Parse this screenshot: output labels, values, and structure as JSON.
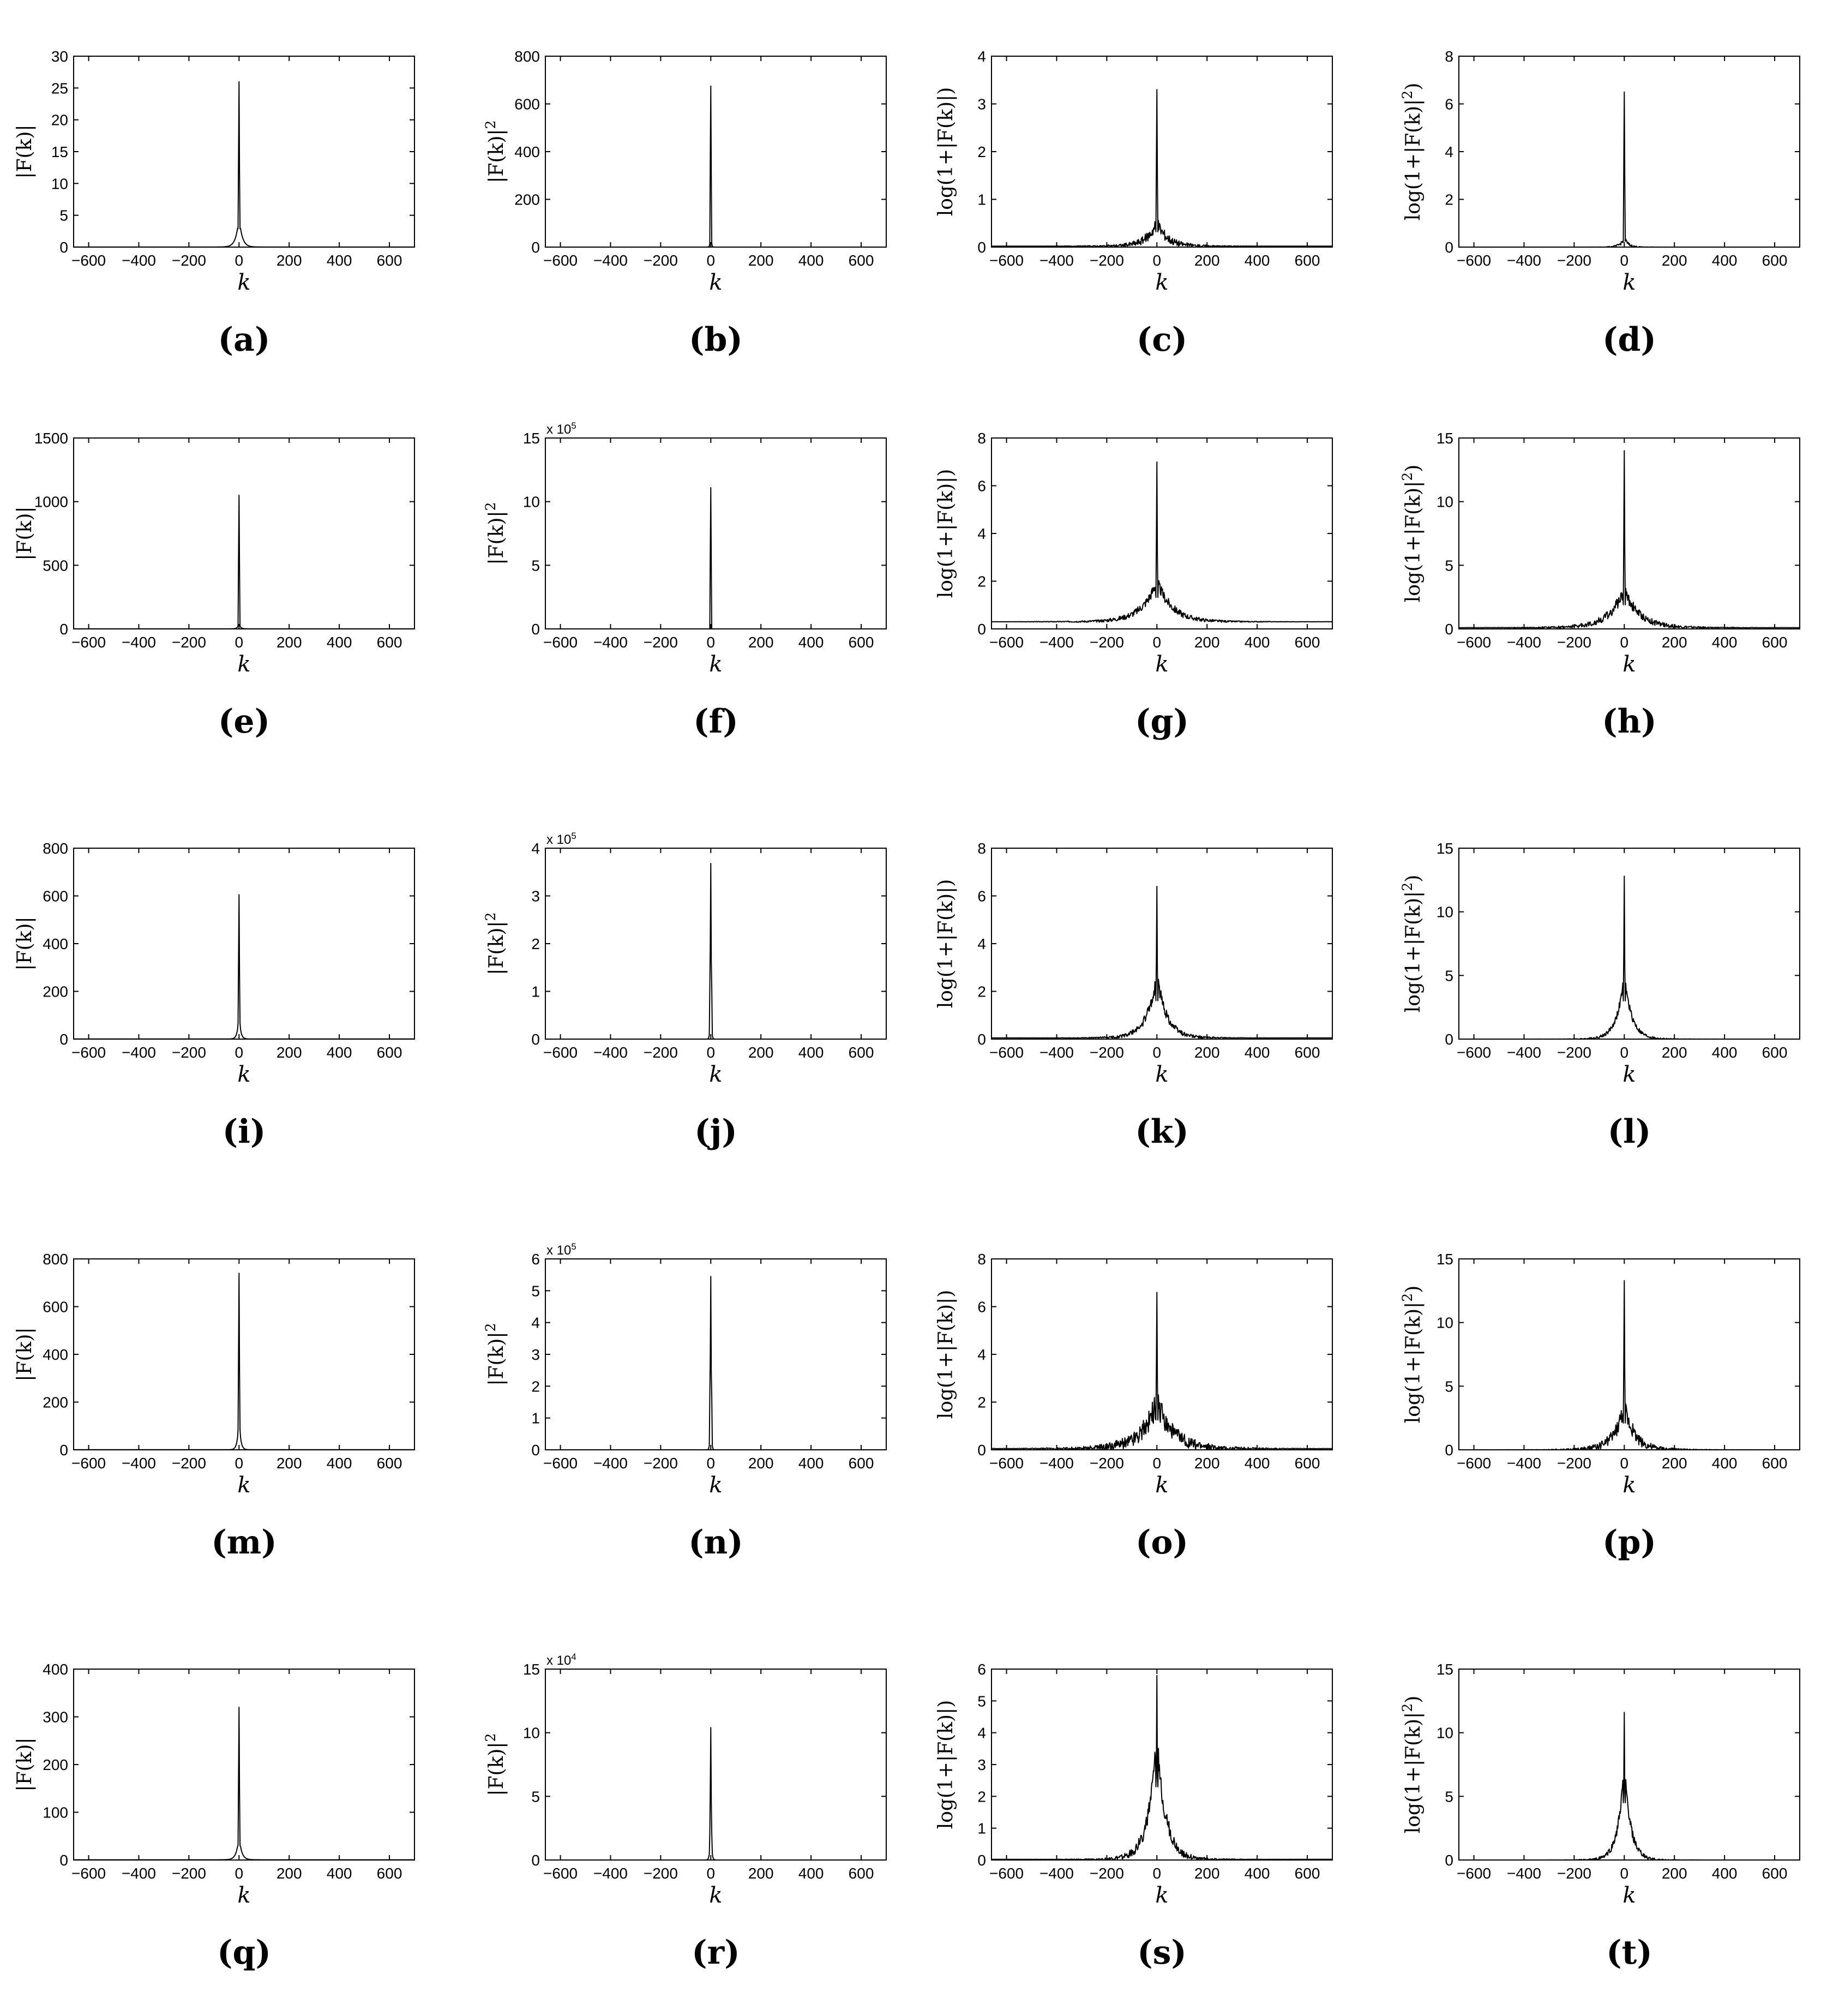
{
  "chart_data": [
    {
      "panel": "(a)",
      "type": "line",
      "xlabel": "k",
      "ylabel": "|F(k)|",
      "multiplier": "",
      "xlim": [
        -660,
        700
      ],
      "xticks": [
        -600,
        -400,
        -200,
        0,
        200,
        400,
        600
      ],
      "ylim": [
        0,
        30
      ],
      "yticks": [
        0,
        5,
        10,
        15,
        20,
        25,
        30
      ],
      "peak": 26,
      "shoulder": 4.8,
      "tail": 0.01,
      "width": 12,
      "noise": 0
    },
    {
      "panel": "(b)",
      "type": "line",
      "xlabel": "k",
      "ylabel": "|F(k)|^2",
      "multiplier": "",
      "xlim": [
        -660,
        700
      ],
      "xticks": [
        -600,
        -400,
        -200,
        0,
        200,
        400,
        600
      ],
      "ylim": [
        0,
        800
      ],
      "yticks": [
        0,
        200,
        400,
        600,
        800
      ],
      "peak": 675,
      "shoulder": 25,
      "tail": 0.01,
      "width": 3,
      "noise": 0
    },
    {
      "panel": "(c)",
      "type": "line",
      "xlabel": "k",
      "ylabel": "log(1+|F(k)|)",
      "multiplier": "",
      "xlim": [
        -660,
        700
      ],
      "xticks": [
        -600,
        -400,
        -200,
        0,
        200,
        400,
        600
      ],
      "ylim": [
        0,
        4
      ],
      "yticks": [
        0,
        1,
        2,
        3,
        4
      ],
      "peak": 3.3,
      "shoulder": 0.5,
      "tail": 0.02,
      "width": 40,
      "noise": 0.15
    },
    {
      "panel": "(d)",
      "type": "line",
      "xlabel": "k",
      "ylabel": "log(1+|F(k)|^2)",
      "multiplier": "",
      "xlim": [
        -660,
        700
      ],
      "xticks": [
        -600,
        -400,
        -200,
        0,
        200,
        400,
        600
      ],
      "ylim": [
        0,
        8
      ],
      "yticks": [
        0,
        2,
        4,
        6,
        8
      ],
      "peak": 6.5,
      "shoulder": 0.4,
      "tail": 0.0,
      "width": 15,
      "noise": 0.1
    },
    {
      "panel": "(e)",
      "type": "line",
      "xlabel": "k",
      "ylabel": "|F(k)|",
      "multiplier": "",
      "xlim": [
        -660,
        700
      ],
      "xticks": [
        -600,
        -400,
        -200,
        0,
        200,
        400,
        600
      ],
      "ylim": [
        0,
        1500
      ],
      "yticks": [
        0,
        500,
        1000,
        1500
      ],
      "peak": 1050,
      "shoulder": 40,
      "tail": 0.5,
      "width": 6,
      "noise": 0
    },
    {
      "panel": "(f)",
      "type": "line",
      "xlabel": "k",
      "ylabel": "|F(k)|^2",
      "multiplier": "x 10^5",
      "xlim": [
        -660,
        700
      ],
      "xticks": [
        -600,
        -400,
        -200,
        0,
        200,
        400,
        600
      ],
      "ylim": [
        0,
        15
      ],
      "yticks": [
        0,
        5,
        10,
        15
      ],
      "peak": 11.1,
      "shoulder": 0.05,
      "tail": 0,
      "width": 2,
      "noise": 0
    },
    {
      "panel": "(g)",
      "type": "line",
      "xlabel": "k",
      "ylabel": "log(1+|F(k)|)",
      "multiplier": "",
      "xlim": [
        -660,
        700
      ],
      "xticks": [
        -600,
        -400,
        -200,
        0,
        200,
        400,
        600
      ],
      "ylim": [
        0,
        8
      ],
      "yticks": [
        0,
        2,
        4,
        6,
        8
      ],
      "peak": 7.0,
      "shoulder": 1.7,
      "tail": 0.3,
      "width": 60,
      "noise": 0.25
    },
    {
      "panel": "(h)",
      "type": "line",
      "xlabel": "k",
      "ylabel": "log(1+|F(k)|^2)",
      "multiplier": "",
      "xlim": [
        -660,
        700
      ],
      "xticks": [
        -600,
        -400,
        -200,
        0,
        200,
        400,
        600
      ],
      "ylim": [
        0,
        15
      ],
      "yticks": [
        0,
        5,
        10,
        15
      ],
      "peak": 14.0,
      "shoulder": 3.0,
      "tail": 0.1,
      "width": 60,
      "noise": 0.5
    },
    {
      "panel": "(i)",
      "type": "line",
      "xlabel": "k",
      "ylabel": "|F(k)|",
      "multiplier": "",
      "xlim": [
        -660,
        700
      ],
      "xticks": [
        -600,
        -400,
        -200,
        0,
        200,
        400,
        600
      ],
      "ylim": [
        0,
        800
      ],
      "yticks": [
        0,
        200,
        400,
        600,
        800
      ],
      "peak": 605,
      "shoulder": 110,
      "tail": 0.5,
      "width": 6,
      "noise": 0
    },
    {
      "panel": "(j)",
      "type": "line",
      "xlabel": "k",
      "ylabel": "|F(k)|^2",
      "multiplier": "x 10^5",
      "xlim": [
        -660,
        700
      ],
      "xticks": [
        -600,
        -400,
        -200,
        0,
        200,
        400,
        600
      ],
      "ylim": [
        0,
        4
      ],
      "yticks": [
        0,
        1,
        2,
        3,
        4
      ],
      "peak": 3.68,
      "shoulder": 1.8,
      "tail": 0,
      "width": 2,
      "noise": 0
    },
    {
      "panel": "(k)",
      "type": "line",
      "xlabel": "k",
      "ylabel": "log(1+|F(k)|)",
      "multiplier": "",
      "xlim": [
        -660,
        700
      ],
      "xticks": [
        -600,
        -400,
        -200,
        0,
        200,
        400,
        600
      ],
      "ylim": [
        0,
        8
      ],
      "yticks": [
        0,
        2,
        4,
        6,
        8
      ],
      "peak": 6.4,
      "shoulder": 2.6,
      "tail": 0.05,
      "width": 40,
      "noise": 0.3
    },
    {
      "panel": "(l)",
      "type": "line",
      "xlabel": "k",
      "ylabel": "log(1+|F(k)|^2)",
      "multiplier": "",
      "xlim": [
        -660,
        700
      ],
      "xticks": [
        -600,
        -400,
        -200,
        0,
        200,
        400,
        600
      ],
      "ylim": [
        0,
        15
      ],
      "yticks": [
        0,
        5,
        10,
        15
      ],
      "peak": 12.8,
      "shoulder": 5.0,
      "tail": 0.0,
      "width": 30,
      "noise": 0.4
    },
    {
      "panel": "(m)",
      "type": "line",
      "xlabel": "k",
      "ylabel": "|F(k)|",
      "multiplier": "",
      "xlim": [
        -660,
        700
      ],
      "xticks": [
        -600,
        -400,
        -200,
        0,
        200,
        400,
        600
      ],
      "ylim": [
        0,
        800
      ],
      "yticks": [
        0,
        200,
        400,
        600,
        800
      ],
      "peak": 740,
      "shoulder": 140,
      "tail": 0.5,
      "width": 6,
      "noise": 0
    },
    {
      "panel": "(n)",
      "type": "line",
      "xlabel": "k",
      "ylabel": "|F(k)|^2",
      "multiplier": "x 10^5",
      "xlim": [
        -660,
        700
      ],
      "xticks": [
        -600,
        -400,
        -200,
        0,
        200,
        400,
        600
      ],
      "ylim": [
        0,
        6
      ],
      "yticks": [
        0,
        1,
        2,
        3,
        4,
        5,
        6
      ],
      "peak": 5.45,
      "shoulder": 2.8,
      "tail": 0,
      "width": 2,
      "noise": 0
    },
    {
      "panel": "(o)",
      "type": "line",
      "xlabel": "k",
      "ylabel": "log(1+|F(k)|)",
      "multiplier": "",
      "xlim": [
        -660,
        700
      ],
      "xticks": [
        -600,
        -400,
        -200,
        0,
        200,
        400,
        600
      ],
      "ylim": [
        0,
        8
      ],
      "yticks": [
        0,
        2,
        4,
        6,
        8
      ],
      "peak": 6.6,
      "shoulder": 2.0,
      "tail": 0.05,
      "width": 60,
      "noise": 0.6
    },
    {
      "panel": "(p)",
      "type": "line",
      "xlabel": "k",
      "ylabel": "log(1+|F(k)|^2)",
      "multiplier": "",
      "xlim": [
        -660,
        700
      ],
      "xticks": [
        -600,
        -400,
        -200,
        0,
        200,
        400,
        600
      ],
      "ylim": [
        0,
        15
      ],
      "yticks": [
        0,
        5,
        10,
        15
      ],
      "peak": 13.3,
      "shoulder": 3.5,
      "tail": 0.0,
      "width": 40,
      "noise": 0.8
    },
    {
      "panel": "(q)",
      "type": "line",
      "xlabel": "k",
      "ylabel": "|F(k)|",
      "multiplier": "",
      "xlim": [
        -660,
        700
      ],
      "xticks": [
        -600,
        -400,
        -200,
        0,
        200,
        400,
        600
      ],
      "ylim": [
        0,
        400
      ],
      "yticks": [
        0,
        100,
        200,
        300,
        400
      ],
      "peak": 320,
      "shoulder": 50,
      "tail": 0.5,
      "width": 10,
      "noise": 0
    },
    {
      "panel": "(r)",
      "type": "line",
      "xlabel": "k",
      "ylabel": "|F(k)|^2",
      "multiplier": "x 10^4",
      "xlim": [
        -660,
        700
      ],
      "xticks": [
        -600,
        -400,
        -200,
        0,
        200,
        400,
        600
      ],
      "ylim": [
        0,
        15
      ],
      "yticks": [
        0,
        5,
        10,
        15
      ],
      "peak": 10.4,
      "shoulder": 3.5,
      "tail": 0,
      "width": 3,
      "noise": 0
    },
    {
      "panel": "(s)",
      "type": "line",
      "xlabel": "k",
      "ylabel": "log(1+|F(k)|)",
      "multiplier": "",
      "xlim": [
        -660,
        700
      ],
      "xticks": [
        -600,
        -400,
        -200,
        0,
        200,
        400,
        600
      ],
      "ylim": [
        0,
        6
      ],
      "yticks": [
        0,
        1,
        2,
        3,
        4,
        5,
        6
      ],
      "peak": 5.8,
      "shoulder": 3.8,
      "tail": 0.02,
      "width": 35,
      "noise": 0.4
    },
    {
      "panel": "(t)",
      "type": "line",
      "xlabel": "k",
      "ylabel": "log(1+|F(k)|^2)",
      "multiplier": "",
      "xlim": [
        -660,
        700
      ],
      "xticks": [
        -600,
        -400,
        -200,
        0,
        200,
        400,
        600
      ],
      "ylim": [
        0,
        15
      ],
      "yticks": [
        0,
        5,
        10,
        15
      ],
      "peak": 11.6,
      "shoulder": 7.5,
      "tail": 0.0,
      "width": 25,
      "noise": 0.6
    }
  ]
}
